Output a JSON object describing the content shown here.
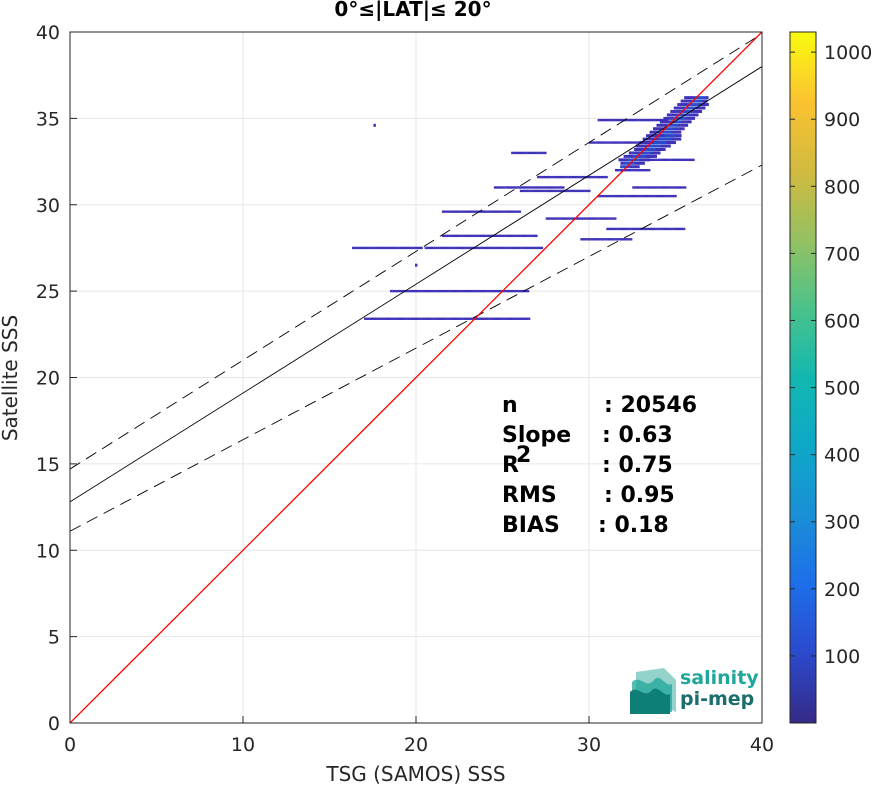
{
  "chart_data": {
    "type": "scatter",
    "title": "0°≤|LAT|≤ 20°",
    "xlabel": "TSG (SAMOS) SSS",
    "ylabel": "Satellite SSS",
    "xlim": [
      0,
      40
    ],
    "ylim": [
      0,
      40
    ],
    "xticks": [
      "0",
      "10",
      "20",
      "30",
      "40"
    ],
    "yticks": [
      "0",
      "5",
      "10",
      "15",
      "20",
      "25",
      "30",
      "35",
      "40"
    ],
    "grid": true,
    "lines": {
      "identity": {
        "slope": 1,
        "intercept": 0,
        "color": "#ff0000"
      },
      "fit": {
        "slope": 0.63,
        "intercept": 12.8,
        "color": "#000000"
      },
      "fit_upper": {
        "slope": 0.63,
        "intercept": 14.7,
        "color": "#000000"
      },
      "fit_lower": {
        "slope": 0.53,
        "intercept": 11.1,
        "color": "#000000"
      }
    },
    "stats": [
      {
        "label": "n",
        "value": ": 20546"
      },
      {
        "label": "Slope",
        "value": ": 0.63"
      },
      {
        "label": "R",
        "sup": "2",
        "value": ": 0.75"
      },
      {
        "label": "RMS",
        "value": ": 0.95"
      },
      {
        "label": "BIAS",
        "value": ": 0.18"
      }
    ],
    "colorbar": {
      "min": 0,
      "max": 1030,
      "ticks": [
        "100",
        "200",
        "300",
        "400",
        "500",
        "600",
        "700",
        "800",
        "900",
        "1000"
      ]
    },
    "segments": [
      {
        "x0": 16.3,
        "x1": 20.3,
        "y": 27.5
      },
      {
        "x0": 20.5,
        "x1": 27.3,
        "y": 27.5
      },
      {
        "x0": 17.0,
        "x1": 26.5,
        "y": 23.4
      },
      {
        "x0": 18.5,
        "x1": 26.5,
        "y": 25.0
      },
      {
        "x0": 21.5,
        "x1": 27.0,
        "y": 28.2
      },
      {
        "x0": 21.5,
        "x1": 26.0,
        "y": 29.6
      },
      {
        "x0": 24.5,
        "x1": 28.5,
        "y": 31.0
      },
      {
        "x0": 26.0,
        "x1": 30.0,
        "y": 30.8
      },
      {
        "x0": 27.5,
        "x1": 31.5,
        "y": 29.2
      },
      {
        "x0": 30.5,
        "x1": 35.0,
        "y": 30.5
      },
      {
        "x0": 31.0,
        "x1": 35.5,
        "y": 28.6
      },
      {
        "x0": 29.5,
        "x1": 32.5,
        "y": 28.0
      },
      {
        "x0": 30.0,
        "x1": 34.0,
        "y": 33.6
      },
      {
        "x0": 30.5,
        "x1": 34.5,
        "y": 34.9
      },
      {
        "x0": 32.5,
        "x1": 36.0,
        "y": 32.6
      },
      {
        "x0": 31.5,
        "x1": 33.5,
        "y": 32.0
      },
      {
        "x0": 25.5,
        "x1": 27.5,
        "y": 33.0
      },
      {
        "x0": 32.5,
        "x1": 35.5,
        "y": 31.0
      },
      {
        "x0": 27.0,
        "x1": 31.0,
        "y": 31.6
      }
    ],
    "clusters": [
      {
        "x0": 33.0,
        "x1": 36.5,
        "y0": 32.8,
        "y1": 36.3
      },
      {
        "x0": 32.0,
        "x1": 35.0,
        "y0": 32.2,
        "y1": 34.2
      }
    ],
    "outliers": [
      {
        "x": 17.6,
        "y": 34.6
      },
      {
        "x": 20.0,
        "y": 26.5
      }
    ]
  },
  "logo": {
    "line1": "salinity",
    "line2": "pi-mep",
    "color": "#1fa79b"
  }
}
